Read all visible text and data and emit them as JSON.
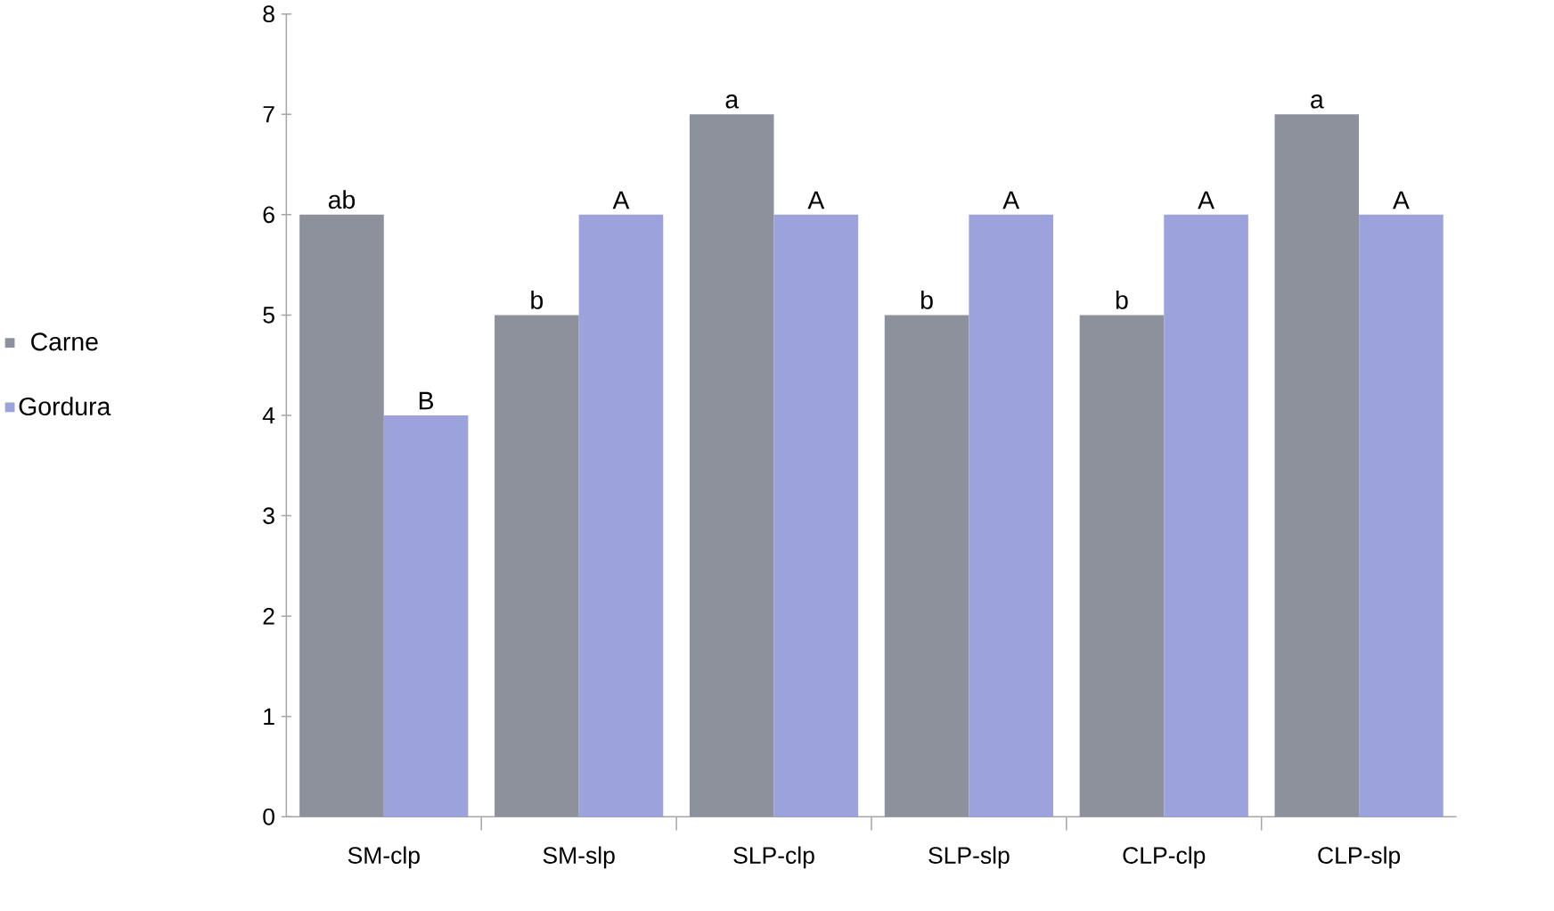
{
  "chart_data": {
    "type": "bar",
    "categories": [
      "SM-clp",
      "SM-slp",
      "SLP-clp",
      "SLP-slp",
      "CLP-clp",
      "CLP-slp"
    ],
    "series": [
      {
        "name": "Carne",
        "color": "#8c919c",
        "values": [
          6,
          5,
          7,
          5,
          5,
          7
        ],
        "value_labels": [
          "ab",
          "b",
          "a",
          "b",
          "b",
          "a"
        ]
      },
      {
        "name": "Gordura",
        "color": "#9ba2dc",
        "values": [
          4,
          6,
          6,
          6,
          6,
          6
        ],
        "value_labels": [
          "B",
          "A",
          "A",
          "A",
          "A",
          "A"
        ]
      }
    ],
    "ylim": [
      0,
      8
    ],
    "yticks": [
      0,
      1,
      2,
      3,
      4,
      5,
      6,
      7,
      8
    ],
    "grid": false,
    "legend": "left"
  }
}
